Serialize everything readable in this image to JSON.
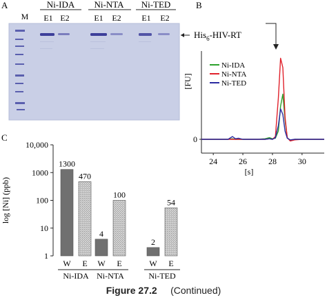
{
  "panel_labels": {
    "a": "A",
    "b": "B",
    "c": "C"
  },
  "gel": {
    "marker_label": "M",
    "groups": [
      {
        "name": "Ni-IDA",
        "lanes": [
          "E1",
          "E2"
        ]
      },
      {
        "name": "Ni-NTA",
        "lanes": [
          "E1",
          "E2"
        ]
      },
      {
        "name": "Ni-TED",
        "lanes": [
          "E1",
          "E2"
        ]
      }
    ],
    "band_label": "His6-HIV-RT",
    "band_label_main": "His",
    "band_label_sub": "6",
    "band_label_rest": "-HIV-RT",
    "colors": {
      "background": "#c9cfe6",
      "band": "#3d3f9a"
    }
  },
  "figure_caption": {
    "number": "Figure 27.2",
    "note": "(Continued)"
  },
  "chart_data": [
    {
      "type": "line",
      "panel": "B",
      "xlabel": "[s]",
      "ylabel": "[FU]",
      "xlim": [
        23.2,
        31.5
      ],
      "xticks": [
        24,
        26,
        28,
        30
      ],
      "yticks": [
        0
      ],
      "grid": false,
      "legend_position": "top-left",
      "x": [
        23.2,
        24,
        24.5,
        25,
        25.3,
        25.5,
        25.7,
        26,
        26.5,
        27,
        27.5,
        27.8,
        28,
        28.2,
        28.4,
        28.55,
        28.7,
        28.85,
        29.0,
        29.2,
        29.5,
        30,
        31,
        31.5
      ],
      "series": [
        {
          "name": "Ni-IDA",
          "color": "#2ca02c",
          "values": [
            0,
            0,
            0,
            0,
            1,
            0,
            0,
            0,
            0,
            0,
            1,
            3,
            1,
            2,
            15,
            60,
            82,
            35,
            3,
            -2,
            0,
            0,
            0,
            0
          ]
        },
        {
          "name": "Ni-NTA",
          "color": "#e0202a",
          "values": [
            0,
            0,
            0,
            0,
            0,
            0,
            0,
            0,
            0,
            0,
            0,
            1,
            0,
            5,
            75,
            147,
            130,
            40,
            3,
            -3,
            -1,
            0,
            0,
            0
          ]
        },
        {
          "name": "Ni-TED",
          "color": "#2a2aa0",
          "values": [
            0,
            0,
            0,
            0,
            5,
            1,
            2,
            0,
            0,
            0,
            0,
            1,
            0,
            3,
            25,
            55,
            45,
            15,
            2,
            -1,
            0,
            0,
            0,
            0
          ]
        }
      ]
    },
    {
      "type": "bar",
      "panel": "C",
      "ylabel": "log [Ni] (ppb)",
      "yscale": "log",
      "ylim": [
        1,
        10000
      ],
      "yticks": [
        1,
        10,
        100,
        1000,
        10000
      ],
      "ytick_labels": [
        "1",
        "10",
        "100",
        "1000",
        "10,000"
      ],
      "grid": false,
      "groups": [
        "Ni-IDA",
        "Ni-NTA",
        "Ni-TED"
      ],
      "bar_labels": [
        "W",
        "E"
      ],
      "values": [
        [
          1300,
          470
        ],
        [
          4,
          100
        ],
        [
          2,
          54
        ]
      ],
      "value_labels": [
        [
          "1300",
          "470"
        ],
        [
          "4",
          "100"
        ],
        [
          "2",
          "54"
        ]
      ],
      "colors": {
        "W": "#707070",
        "E": "#d0d0d0"
      }
    }
  ]
}
